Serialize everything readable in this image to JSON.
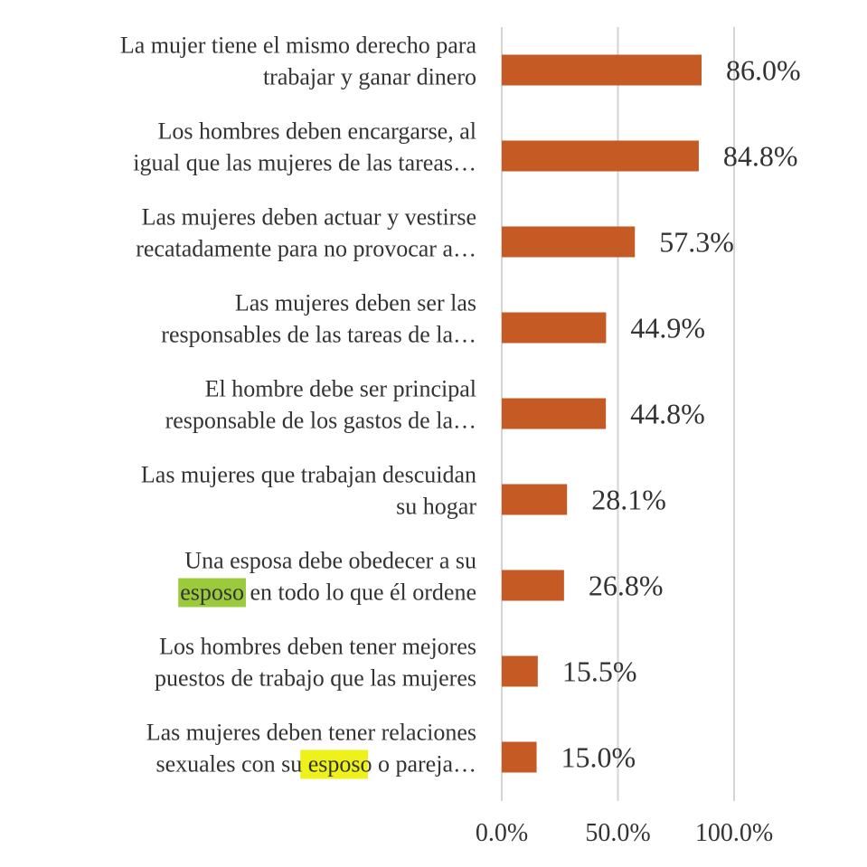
{
  "chart_data": {
    "type": "bar",
    "orientation": "horizontal",
    "title": "",
    "xlabel": "",
    "ylabel": "",
    "xlim": [
      0,
      100
    ],
    "grid": true,
    "x_ticks": [
      "0.0%",
      "50.0%",
      "100.0%"
    ],
    "categories": [
      {
        "lines": [
          "La mujer tiene el mismo derecho para",
          "trabajar y ganar dinero"
        ],
        "value": 86.0,
        "label": "86.0%",
        "highlight": ""
      },
      {
        "lines": [
          "Los hombres deben encargarse, al",
          "igual que las mujeres de las tareas…"
        ],
        "value": 84.8,
        "label": "84.8%",
        "highlight": ""
      },
      {
        "lines": [
          "Las mujeres deben actuar y vestirse",
          "recatadamente para no provocar a…"
        ],
        "value": 57.3,
        "label": "57.3%",
        "highlight": ""
      },
      {
        "lines": [
          "Las mujeres deben ser las",
          "responsables de las tareas de la…"
        ],
        "value": 44.9,
        "label": "44.9%",
        "highlight": ""
      },
      {
        "lines": [
          "El hombre debe ser principal",
          "responsable de los gastos de la…"
        ],
        "value": 44.8,
        "label": "44.8%",
        "highlight": ""
      },
      {
        "lines": [
          "Las mujeres que trabajan descuidan",
          "su hogar"
        ],
        "value": 28.1,
        "label": "28.1%",
        "highlight": ""
      },
      {
        "lines": [
          "Una esposa debe obedecer a su",
          "esposo en todo lo que él ordene"
        ],
        "value": 26.8,
        "label": "26.8%",
        "highlight": "green"
      },
      {
        "lines": [
          "Los hombres deben tener mejores",
          "puestos de trabajo que las mujeres"
        ],
        "value": 15.5,
        "label": "15.5%",
        "highlight": ""
      },
      {
        "lines": [
          "Las mujeres deben tener relaciones",
          "sexuales con su esposo o pareja…"
        ],
        "value": 15.0,
        "label": "15.0%",
        "highlight": "yellow"
      }
    ],
    "highlight_word": "esposo",
    "colors": {
      "bar": "#C55A24",
      "grid": "#D4D4D4",
      "text": "#333333",
      "highlight_green": "#9BCB3C",
      "highlight_yellow": "#EEF11A"
    }
  }
}
